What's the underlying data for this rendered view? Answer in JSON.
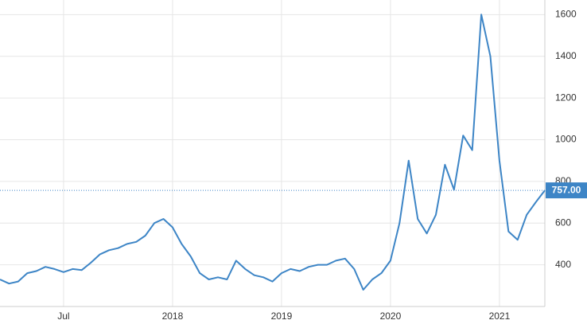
{
  "chart_data": {
    "type": "line",
    "categories": [
      null,
      null,
      null,
      null,
      null,
      null,
      null,
      "Jul",
      null,
      null,
      null,
      null,
      null,
      null,
      null,
      null,
      null,
      null,
      null,
      "2018",
      null,
      null,
      null,
      null,
      null,
      null,
      null,
      null,
      null,
      null,
      null,
      "2019",
      null,
      null,
      null,
      null,
      null,
      null,
      null,
      null,
      null,
      null,
      null,
      "2020",
      null,
      null,
      null,
      null,
      null,
      null,
      null,
      null,
      null,
      null,
      null,
      "2021",
      null,
      null,
      null,
      null,
      null
    ],
    "series": [
      {
        "color": "#3d85c6",
        "values": [
          330,
          310,
          320,
          360,
          370,
          390,
          380,
          365,
          380,
          375,
          410,
          450,
          470,
          480,
          500,
          510,
          540,
          600,
          620,
          580,
          500,
          440,
          360,
          330,
          340,
          330,
          420,
          380,
          350,
          340,
          320,
          360,
          380,
          370,
          390,
          400,
          400,
          420,
          430,
          380,
          280,
          330,
          360,
          420,
          600,
          900,
          620,
          550,
          640,
          880,
          760,
          1020,
          950,
          1600,
          1400,
          900,
          560,
          520,
          640,
          700,
          757
        ],
        "value_labels": [
          null,
          null,
          null,
          null,
          null,
          null,
          null,
          null,
          null,
          null,
          null,
          null,
          null,
          null,
          null,
          null,
          null,
          null,
          null,
          null,
          null,
          null,
          null,
          null,
          null,
          null,
          null,
          null,
          null,
          null,
          null,
          null,
          null,
          null,
          null,
          null,
          null,
          null,
          null,
          null,
          null,
          null,
          null,
          null,
          null,
          null,
          null,
          null,
          null,
          null,
          null,
          null,
          null,
          null,
          null,
          null,
          null,
          null,
          null,
          null,
          "757.00"
        ]
      }
    ],
    "ylim": [
      200,
      1670
    ],
    "yticks": [
      400,
      600,
      800,
      1000,
      1200,
      1400,
      1600
    ],
    "grid": true
  }
}
